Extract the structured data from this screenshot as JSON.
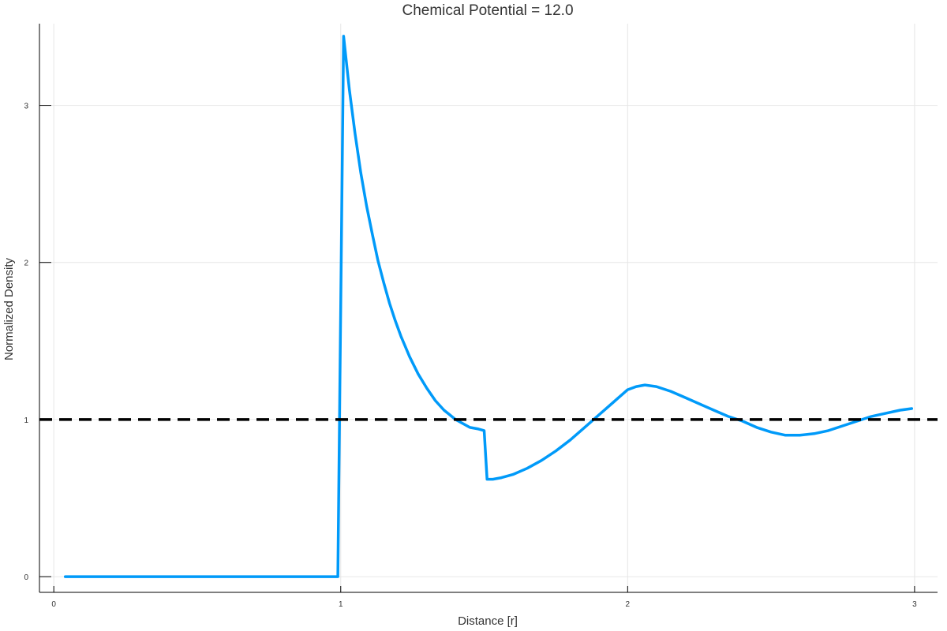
{
  "chart_data": {
    "type": "line",
    "title": "Chemical Potential = 12.0",
    "xlabel": "Distance [r]",
    "ylabel": "Normalized Density",
    "xlim": [
      -0.05,
      3.08
    ],
    "ylim": [
      -0.1,
      3.52
    ],
    "xticks": [
      0,
      1,
      2,
      3
    ],
    "yticks": [
      0,
      1,
      2,
      3
    ],
    "grid": true,
    "legend": "none",
    "colors": {
      "series": "#009af9",
      "reference": "#000000",
      "grid": "#e6e6e6"
    },
    "series": [
      {
        "style": "solid",
        "x": [
          0.04,
          0.2,
          0.4,
          0.6,
          0.8,
          0.99,
          1.01,
          1.03,
          1.05,
          1.07,
          1.09,
          1.11,
          1.13,
          1.15,
          1.17,
          1.19,
          1.21,
          1.24,
          1.27,
          1.3,
          1.33,
          1.36,
          1.38,
          1.4,
          1.42,
          1.45,
          1.48,
          1.5,
          1.51,
          1.53,
          1.56,
          1.6,
          1.65,
          1.7,
          1.75,
          1.8,
          1.85,
          1.9,
          1.95,
          2.0,
          2.03,
          2.06,
          2.1,
          2.15,
          2.2,
          2.25,
          2.3,
          2.35,
          2.4,
          2.45,
          2.5,
          2.55,
          2.6,
          2.65,
          2.7,
          2.75,
          2.8,
          2.85,
          2.9,
          2.95,
          2.99
        ],
        "y": [
          0.0,
          0.0,
          0.0,
          0.0,
          0.0,
          0.0,
          3.44,
          3.1,
          2.82,
          2.57,
          2.36,
          2.18,
          2.01,
          1.87,
          1.74,
          1.63,
          1.53,
          1.4,
          1.29,
          1.2,
          1.12,
          1.06,
          1.03,
          1.0,
          0.98,
          0.95,
          0.94,
          0.93,
          0.62,
          0.62,
          0.63,
          0.65,
          0.69,
          0.74,
          0.8,
          0.87,
          0.95,
          1.03,
          1.11,
          1.19,
          1.21,
          1.22,
          1.21,
          1.18,
          1.14,
          1.1,
          1.06,
          1.02,
          0.99,
          0.95,
          0.92,
          0.9,
          0.9,
          0.91,
          0.93,
          0.96,
          0.99,
          1.02,
          1.04,
          1.06,
          1.07
        ]
      },
      {
        "style": "dashed",
        "x": [
          -0.05,
          3.08
        ],
        "y": [
          1.0,
          1.0
        ]
      }
    ]
  }
}
